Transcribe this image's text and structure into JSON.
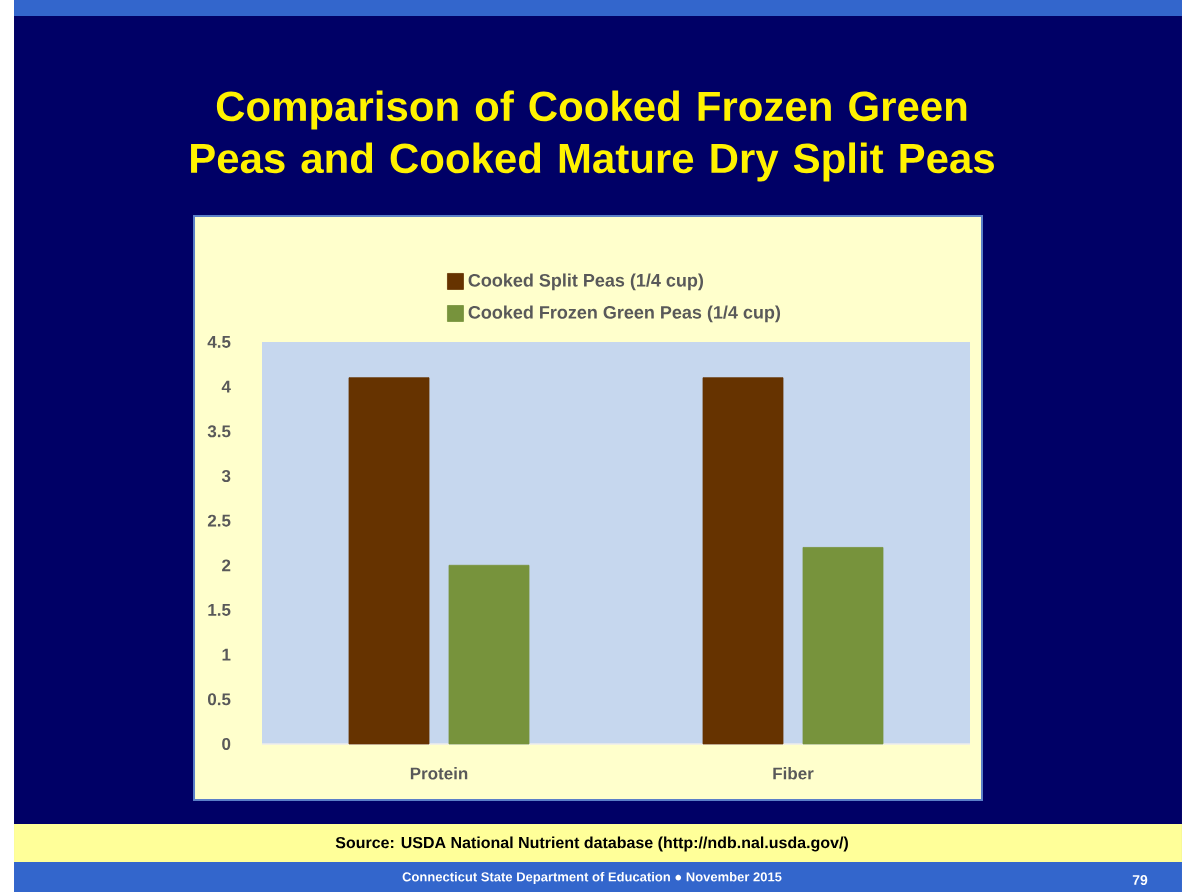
{
  "chart_data": {
    "type": "bar",
    "title": "Comparison of Cooked Frozen Green Peas and Cooked Mature Dry Split Peas",
    "categories": [
      "Protein",
      "Fiber"
    ],
    "series": [
      {
        "name": "Cooked Split Peas (1/4 cup)",
        "color": "#663300",
        "values": [
          4.1,
          4.1
        ]
      },
      {
        "name": "Cooked Frozen Green Peas (1/4 cup)",
        "color": "#77933c",
        "values": [
          2.0,
          2.2
        ]
      }
    ],
    "ylim": [
      0,
      4.5
    ],
    "yticks": [
      0,
      0.5,
      1,
      1.5,
      2,
      2.5,
      3,
      3.5,
      4,
      4.5
    ],
    "legend": "top",
    "annotations": [
      "Source: USDA National Nutrient database (http://ndb.nal.usda.gov/)",
      "Connecticut State Department of Education ● November 2015",
      "79"
    ]
  }
}
